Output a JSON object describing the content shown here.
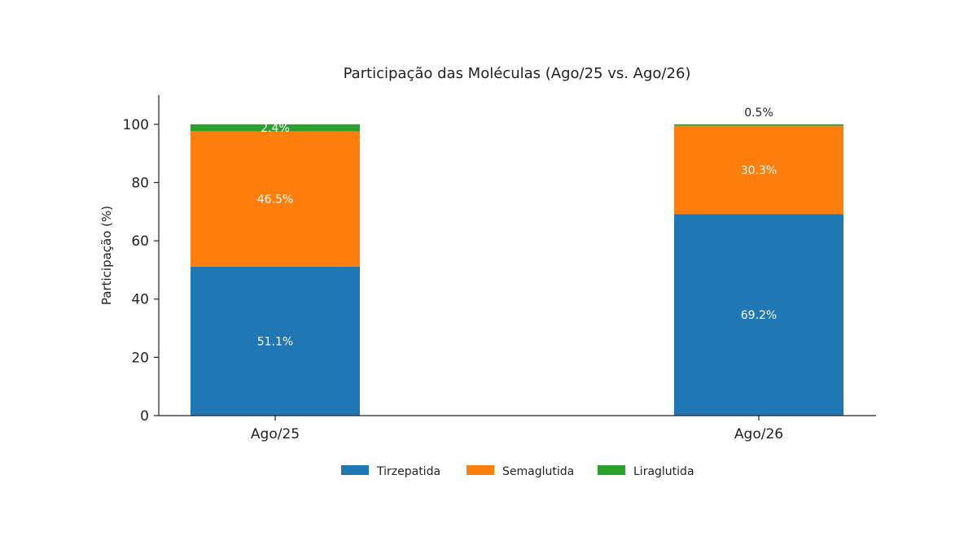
{
  "chart_data": {
    "type": "bar",
    "stacked": true,
    "title": "Participação das Moléculas (Ago/25 vs. Ago/26)",
    "xlabel": "",
    "ylabel": "Participação (%)",
    "ylim": [
      0,
      110
    ],
    "yticks": [
      0,
      20,
      40,
      60,
      80,
      100
    ],
    "categories": [
      "Ago/25",
      "Ago/26"
    ],
    "series": [
      {
        "name": "Tirzepatida",
        "color": "#1f77b4",
        "values": [
          51.1,
          69.2
        ],
        "labels": [
          "51.1%",
          "69.2%"
        ]
      },
      {
        "name": "Semaglutida",
        "color": "#ff7f0e",
        "values": [
          46.5,
          30.3
        ],
        "labels": [
          "46.5%",
          "30.3%"
        ]
      },
      {
        "name": "Liraglutida",
        "color": "#2ca02c",
        "values": [
          2.4,
          0.5
        ],
        "labels": [
          "2.4%",
          "0.5%"
        ]
      }
    ],
    "legend": "bottom-center",
    "grid": false
  }
}
